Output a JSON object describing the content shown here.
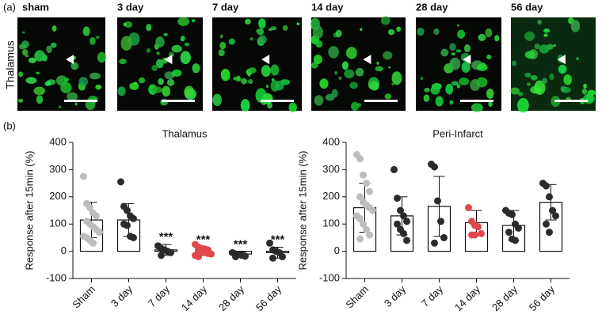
{
  "panel_a": {
    "label": "(a)",
    "row_label": "Thalamus",
    "titles": [
      "sham",
      "3 day",
      "7 day",
      "14 day",
      "28 day",
      "56 day"
    ]
  },
  "panel_b": {
    "label": "(b)"
  },
  "chart_data": [
    {
      "type": "bar",
      "title": "Thalamus",
      "ylabel": "Response after 15min (%)",
      "categories": [
        "Sham",
        "3 day",
        "7 day",
        "14 day",
        "28 day",
        "56 day"
      ],
      "values": [
        115,
        115,
        5,
        0,
        -10,
        -5
      ],
      "errors": [
        65,
        60,
        20,
        15,
        8,
        20
      ],
      "annotations": [
        null,
        null,
        "***",
        "***",
        "***",
        "***"
      ],
      "points": [
        [
          275,
          175,
          160,
          140,
          130,
          110,
          100,
          90,
          80,
          70,
          55,
          50,
          40,
          30
        ],
        [
          255,
          165,
          150,
          130,
          120,
          100,
          95,
          55,
          50
        ],
        [
          20,
          10,
          5,
          0,
          -5,
          -15
        ],
        [
          25,
          15,
          10,
          8,
          5,
          3,
          0,
          -5,
          -8,
          -10,
          -15,
          -20
        ],
        [
          -5,
          -10,
          -12,
          -15,
          -18,
          -20
        ],
        [
          30,
          5,
          0,
          -5,
          -20,
          -25
        ]
      ],
      "point_colors": [
        "#bdbdbd",
        "#2b2b2b",
        "#2b2b2b",
        "#e0474c",
        "#2b2b2b",
        "#2b2b2b"
      ],
      "ylim": [
        -100,
        400
      ],
      "yticks": [
        -100,
        0,
        100,
        200,
        300,
        400
      ]
    },
    {
      "type": "bar",
      "title": "Peri-Infarct",
      "ylabel": "Response after 15min (%)",
      "categories": [
        "Sham",
        "3 day",
        "7 day",
        "14 day",
        "28 day",
        "56 day"
      ],
      "values": [
        160,
        130,
        165,
        105,
        95,
        180
      ],
      "errors": [
        90,
        70,
        110,
        45,
        55,
        65
      ],
      "annotations": [
        null,
        null,
        null,
        null,
        null,
        null
      ],
      "points": [
        [
          355,
          340,
          280,
          250,
          220,
          200,
          180,
          170,
          160,
          150,
          130,
          120,
          100,
          80,
          60,
          45
        ],
        [
          300,
          195,
          150,
          130,
          110,
          100,
          80,
          65,
          40
        ],
        [
          320,
          310,
          185,
          110,
          50,
          30
        ],
        [
          160,
          110,
          95,
          90,
          65,
          60,
          60
        ],
        [
          150,
          140,
          135,
          100,
          85,
          70,
          45,
          40
        ],
        [
          250,
          240,
          200,
          150,
          130,
          100,
          70
        ]
      ],
      "point_colors": [
        "#bdbdbd",
        "#2b2b2b",
        "#2b2b2b",
        "#e0474c",
        "#2b2b2b",
        "#2b2b2b"
      ],
      "ylim": [
        -100,
        400
      ],
      "yticks": [
        -100,
        0,
        100,
        200,
        300,
        400
      ]
    }
  ]
}
